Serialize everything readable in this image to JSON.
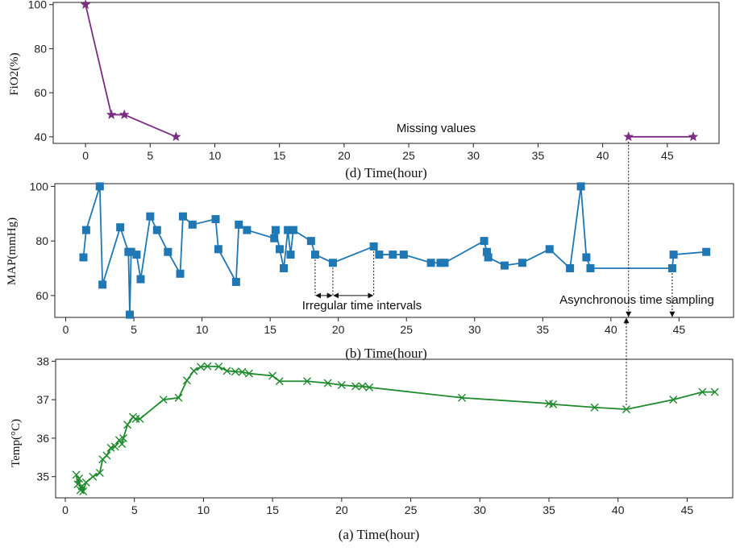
{
  "colors": {
    "fio2": "#7b2d83",
    "map": "#1f77b4",
    "temp": "#1f8a2e",
    "axis": "#222222"
  },
  "chart_data": [
    {
      "id": "fio2",
      "type": "line",
      "marker": "star",
      "title": "",
      "xlabel": "(d) Time(hour)",
      "ylabel": "FiO2(%)",
      "xlim": [
        -2.5,
        49
      ],
      "ylim": [
        37,
        101
      ],
      "xticks": [
        0,
        5,
        10,
        15,
        20,
        25,
        30,
        35,
        40,
        45
      ],
      "yticks": [
        40,
        60,
        80,
        100
      ],
      "segments": [
        {
          "x": [
            0,
            2,
            3,
            7
          ],
          "y": [
            100,
            50,
            50,
            40
          ]
        },
        {
          "x": [
            42,
            47
          ],
          "y": [
            40,
            40
          ]
        }
      ],
      "annotations": [
        "Missing values"
      ]
    },
    {
      "id": "map",
      "type": "line",
      "marker": "square",
      "title": "",
      "xlabel": "(b) Time(hour)",
      "ylabel": "MAP(mmHg)",
      "xlim": [
        -0.8,
        49
      ],
      "ylim": [
        52,
        101
      ],
      "xticks": [
        0,
        5,
        10,
        15,
        20,
        25,
        30,
        35,
        40,
        45
      ],
      "yticks": [
        60,
        80,
        100
      ],
      "x": [
        1.3,
        1.5,
        2.5,
        2.7,
        4.0,
        4.6,
        4.7,
        4.8,
        5.2,
        5.5,
        6.2,
        6.7,
        7.5,
        8.4,
        8.6,
        9.3,
        11.0,
        11.2,
        12.5,
        12.7,
        13.3,
        15.3,
        15.4,
        15.7,
        16.0,
        16.3,
        16.5,
        16.7,
        18.0,
        18.3,
        19.6,
        22.6,
        23.0,
        24.0,
        24.8,
        26.8,
        27.5,
        27.8,
        30.7,
        30.9,
        31.0,
        32.2,
        33.5,
        35.5,
        37.0,
        37.8,
        38.2,
        38.5,
        44.5,
        44.6,
        47.0
      ],
      "y": [
        74,
        84,
        100,
        64,
        85,
        76,
        53,
        76,
        75,
        66,
        89,
        84,
        76,
        68,
        89,
        86,
        88,
        77,
        65,
        86,
        84,
        81,
        84,
        77,
        70,
        84,
        75,
        84,
        80,
        75,
        72,
        78,
        75,
        75,
        75,
        72,
        72,
        72,
        80,
        76,
        74,
        71,
        72,
        77,
        70,
        100,
        74,
        70,
        70,
        75,
        76
      ],
      "annotations": [
        "Irregular time intervals",
        "Asynchronous time sampling"
      ]
    },
    {
      "id": "temp",
      "type": "line",
      "marker": "x",
      "title": "",
      "xlabel": "(a) Time(hour)",
      "ylabel": "Temp(°C)",
      "xlim": [
        -0.7,
        48.3
      ],
      "ylim": [
        34.45,
        38.05
      ],
      "xticks": [
        0,
        5,
        10,
        15,
        20,
        25,
        30,
        35,
        40,
        45
      ],
      "yticks": [
        35,
        36,
        37,
        38
      ],
      "x": [
        0.8,
        0.9,
        1.0,
        1.1,
        1.2,
        1.3,
        1.5,
        2.0,
        2.5,
        2.7,
        3.0,
        3.3,
        3.6,
        3.9,
        4.1,
        4.2,
        4.5,
        4.9,
        5.1,
        5.4,
        7.1,
        8.2,
        8.8,
        9.3,
        9.8,
        10.3,
        11.1,
        11.7,
        12.3,
        12.8,
        13.3,
        15.0,
        15.5,
        17.5,
        19.0,
        20.0,
        21.0,
        21.5,
        22.0,
        28.7,
        35.0,
        35.3,
        38.3,
        40.6,
        44.0,
        46.1,
        47.0
      ],
      "y": [
        35.05,
        34.8,
        34.95,
        34.65,
        34.75,
        34.62,
        34.85,
        35.0,
        35.1,
        35.45,
        35.55,
        35.75,
        35.78,
        35.95,
        35.85,
        36.0,
        36.35,
        36.55,
        36.5,
        36.5,
        37.0,
        37.05,
        37.5,
        37.75,
        37.85,
        37.87,
        37.86,
        37.75,
        37.73,
        37.72,
        37.68,
        37.62,
        37.48,
        37.48,
        37.43,
        37.38,
        37.35,
        37.35,
        37.32,
        37.05,
        36.9,
        36.88,
        36.8,
        36.75,
        37.0,
        37.2,
        37.2
      ]
    }
  ]
}
